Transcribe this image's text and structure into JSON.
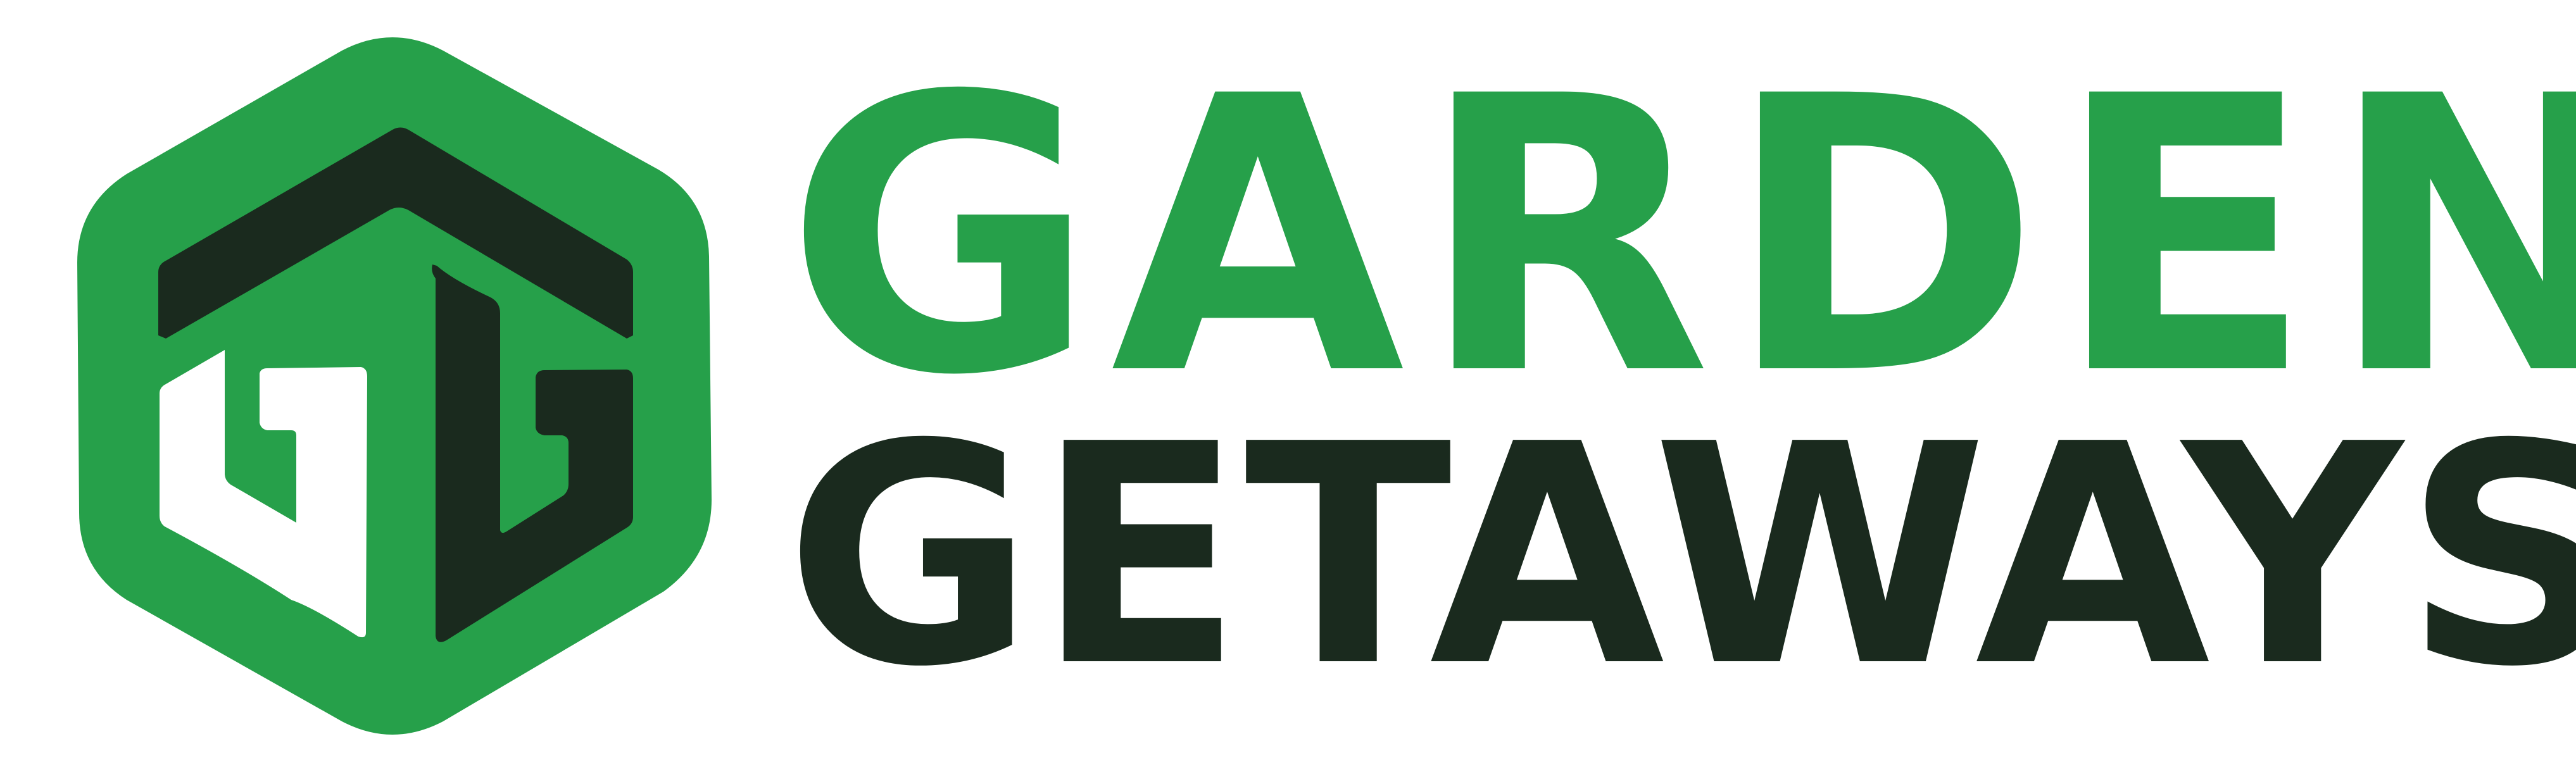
{
  "brand": {
    "line1": "GARDEN",
    "line2": "GETAWAYS",
    "monogram": "GG"
  },
  "colors": {
    "green": "#26a04a",
    "dark": "#1a2a1e",
    "white": "#ffffff"
  },
  "icons": {
    "logo_mark": "hexagon-gg-monogram-icon"
  }
}
